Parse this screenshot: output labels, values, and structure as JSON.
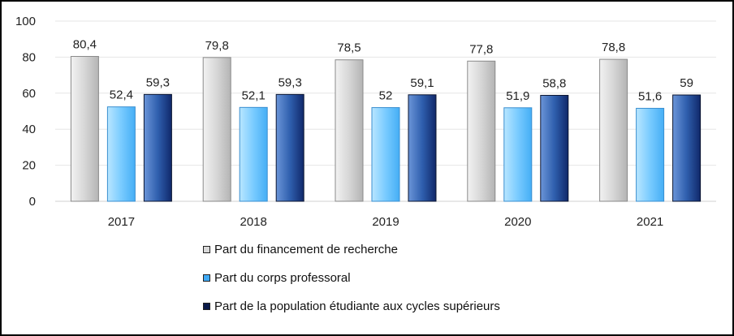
{
  "chart_data": {
    "type": "bar",
    "categories": [
      "2017",
      "2018",
      "2019",
      "2020",
      "2021"
    ],
    "series": [
      {
        "name": "Part du financement de recherche",
        "values": [
          80.4,
          79.8,
          78.5,
          77.8,
          78.8
        ],
        "labels": [
          "80,4",
          "79,8",
          "78,5",
          "77,8",
          "78,8"
        ],
        "color": "#dcdcdc"
      },
      {
        "name": "Part du corps professoral",
        "values": [
          52.4,
          52.1,
          52,
          51.9,
          51.6
        ],
        "labels": [
          "52,4",
          "52,1",
          "52",
          "51,9",
          "51,6"
        ],
        "color": "#7fd0ff"
      },
      {
        "name": "Part de la population étudiante aux cycles supérieurs",
        "values": [
          59.3,
          59.3,
          59.1,
          58.8,
          59
        ],
        "labels": [
          "59,3",
          "59,3",
          "59,1",
          "58,8",
          "59"
        ],
        "color": "#2d62b3"
      }
    ],
    "ylim": [
      0,
      100
    ],
    "yticks": [
      "0",
      "20",
      "40",
      "60",
      "80",
      "100"
    ],
    "grid": true,
    "legend_position": "bottom"
  }
}
